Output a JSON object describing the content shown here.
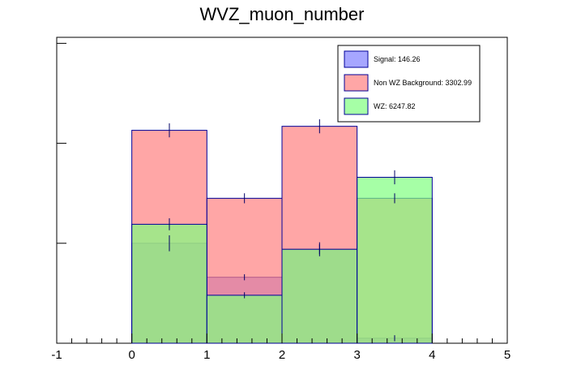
{
  "chart_data": {
    "type": "bar",
    "title": "WVZ_muon_number",
    "xlabel": "",
    "ylabel": "",
    "xlim": [
      -1,
      5
    ],
    "xticks": [
      "-1",
      "0",
      "1",
      "2",
      "3",
      "4",
      "5"
    ],
    "yaxis_labels_visible": false,
    "ylim": [
      0,
      3.06
    ],
    "bins": [
      [
        0,
        1
      ],
      [
        1,
        2
      ],
      [
        2,
        3
      ],
      [
        3,
        4
      ]
    ],
    "series": [
      {
        "name": "Signal: 146.26",
        "fill": "#8080ff",
        "values": [
          1.0,
          0.66,
          0.94,
          0.05
        ],
        "errors": [
          0.08,
          0.03,
          0.07,
          0.03
        ]
      },
      {
        "name": "Non WZ Background: 3302.99",
        "fill": "#ff8080",
        "values": [
          2.13,
          1.45,
          2.17,
          1.45
        ],
        "errors": [
          0.07,
          0.05,
          0.07,
          0.05
        ]
      },
      {
        "name": "WZ: 6247.82",
        "fill": "#80ff80",
        "values": [
          1.19,
          0.48,
          0.94,
          1.66
        ],
        "errors": [
          0.06,
          0.03,
          0.05,
          0.07
        ]
      }
    ],
    "legend_position": "top-right",
    "grid": false
  }
}
